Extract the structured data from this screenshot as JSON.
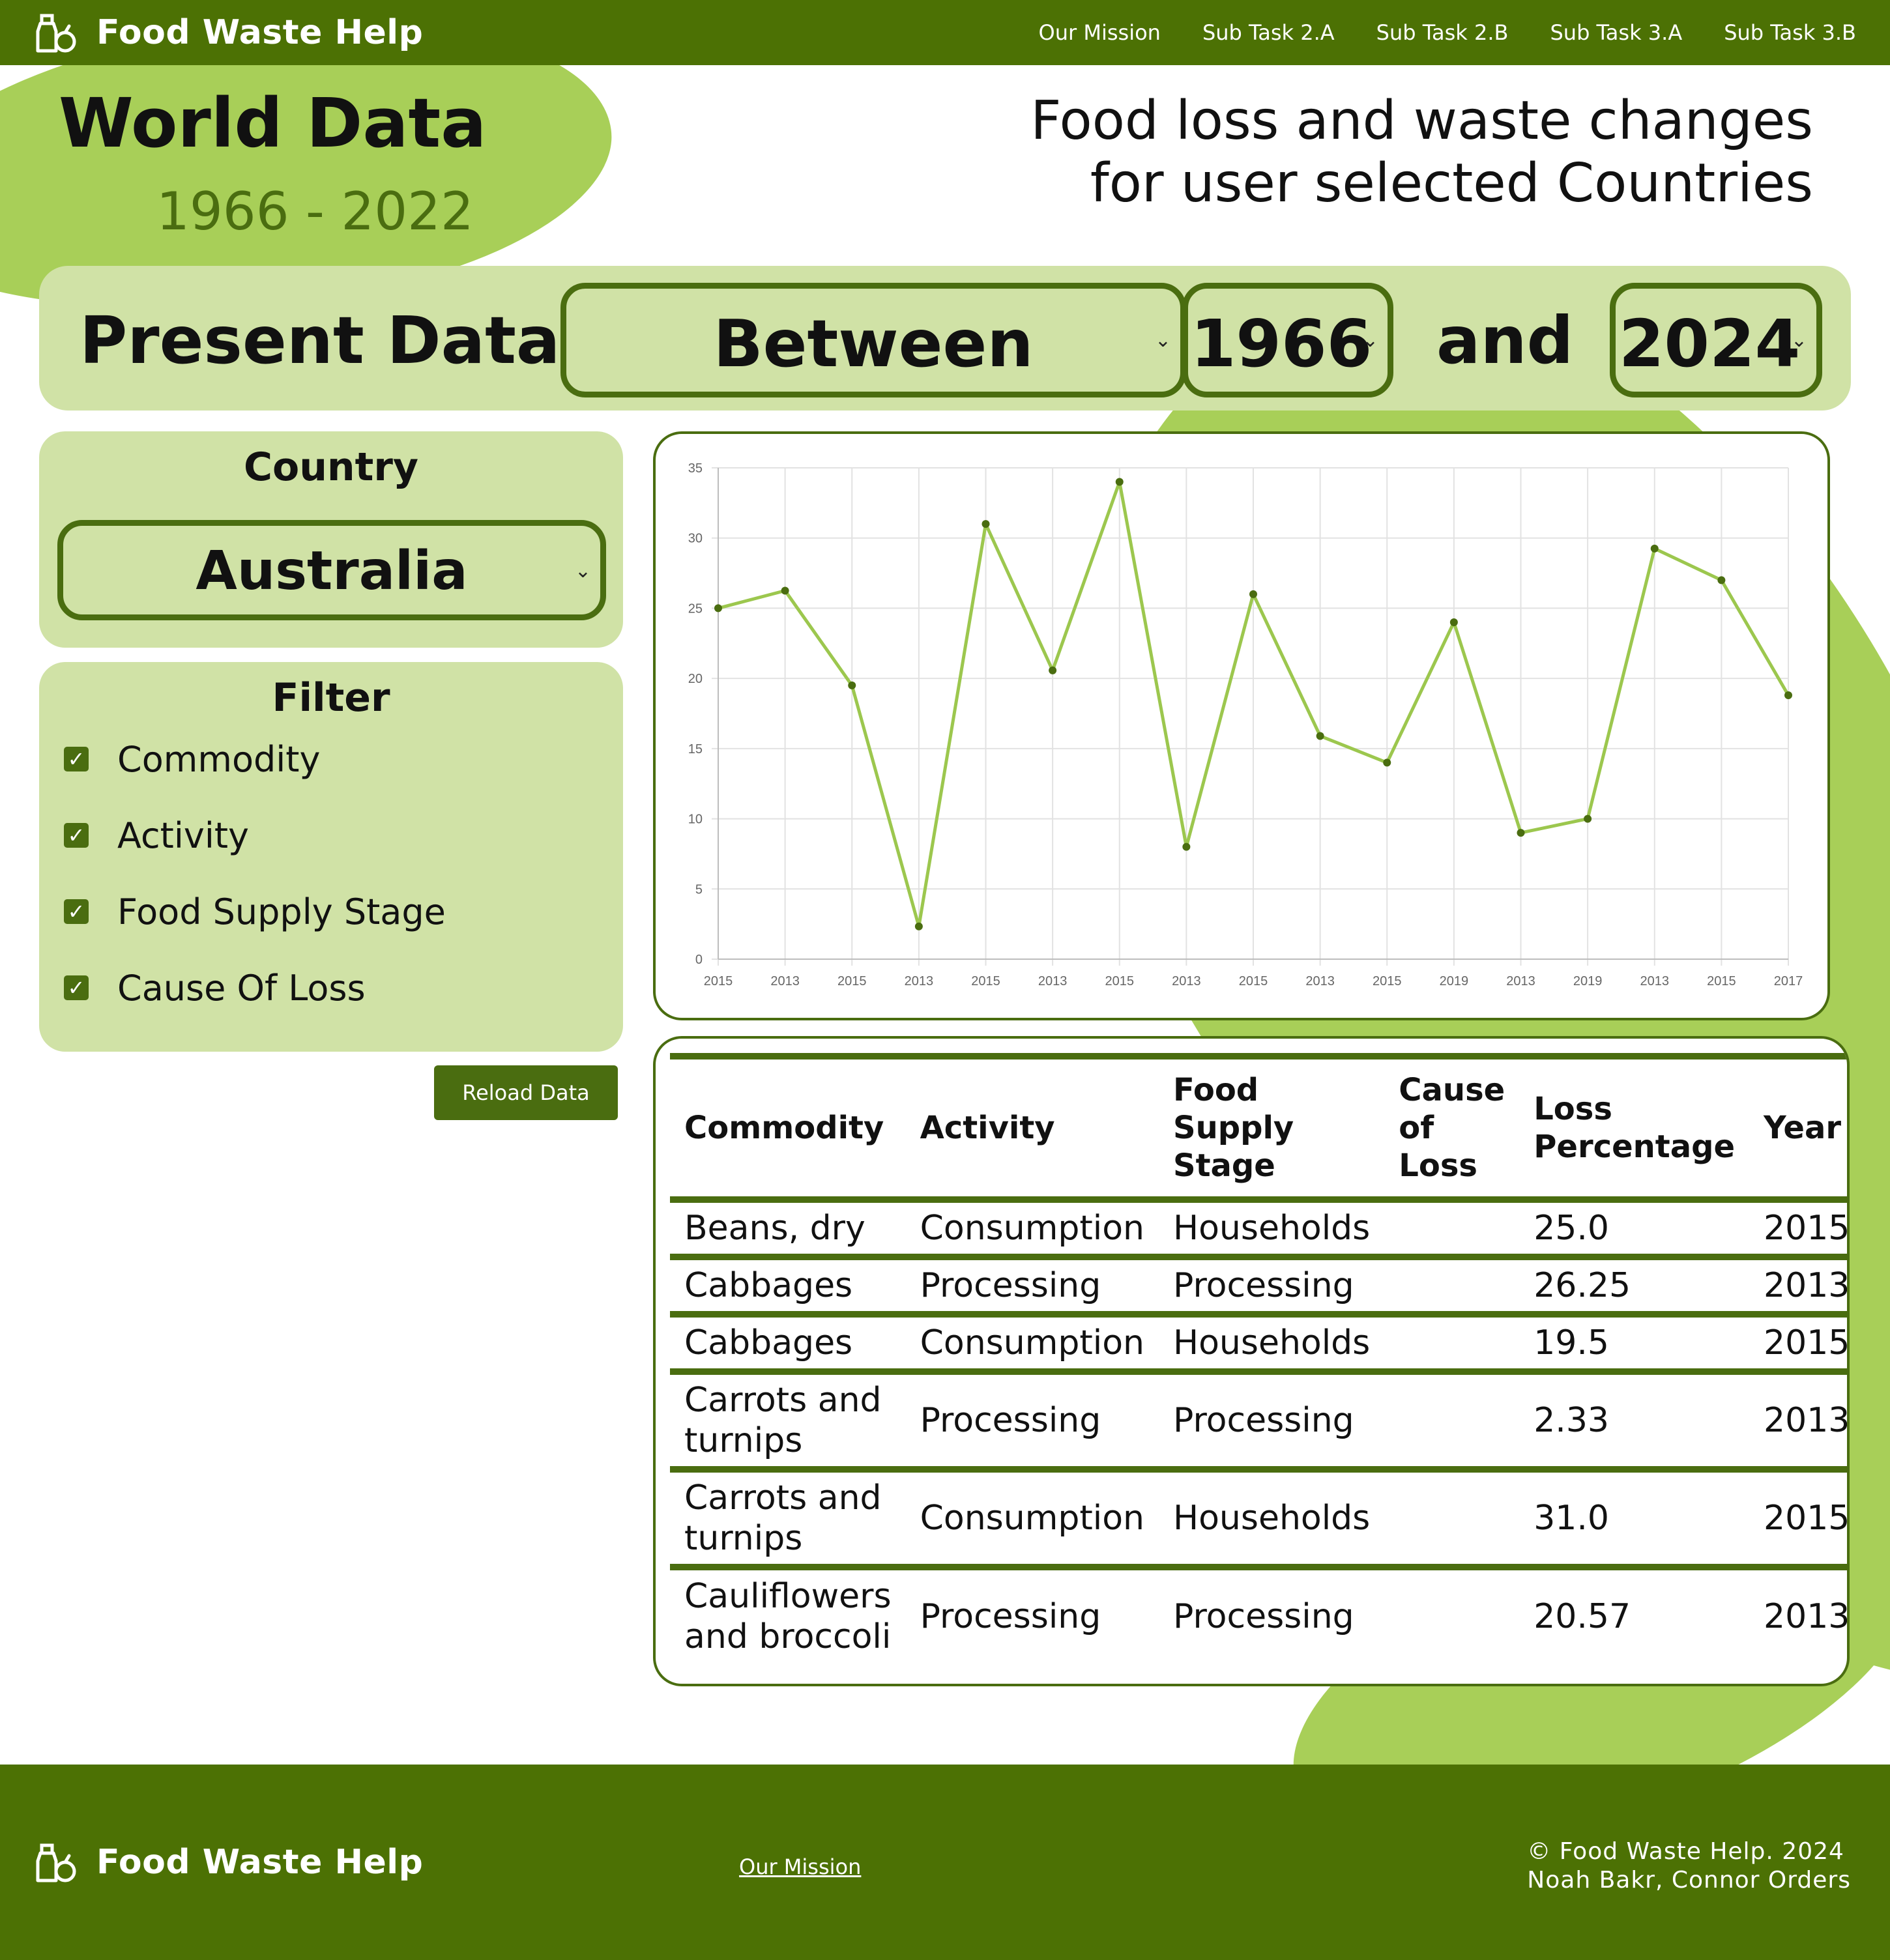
{
  "brand": {
    "name": "Food Waste Help",
    "icon": "food-bag-icon"
  },
  "nav": {
    "links": [
      "Our Mission",
      "Sub Task 2.A",
      "Sub Task 2.B",
      "Sub Task 3.A",
      "Sub Task 3.B"
    ]
  },
  "hero": {
    "title": "World Data",
    "range": "1966 - 2022",
    "subtitle_line1": "Food loss and waste changes",
    "subtitle_line2": "for user selected Countries"
  },
  "present": {
    "label": "Present Data",
    "mode_value": "Between",
    "start_year": "1966",
    "and_label": "and",
    "end_year": "2024"
  },
  "country": {
    "title": "Country",
    "selected": "Australia"
  },
  "filter": {
    "title": "Filter",
    "options": [
      {
        "label": "Commodity",
        "checked": true
      },
      {
        "label": "Activity",
        "checked": true
      },
      {
        "label": "Food Supply Stage",
        "checked": true
      },
      {
        "label": "Cause Of Loss",
        "checked": true
      }
    ]
  },
  "reload_label": "Reload Data",
  "chart_data": {
    "type": "line",
    "categories": [
      "2015",
      "2013",
      "2015",
      "2013",
      "2015",
      "2013",
      "2015",
      "2013",
      "2015",
      "2013",
      "2015",
      "2019",
      "2013",
      "2019",
      "2013",
      "2015",
      "2017"
    ],
    "series": [
      {
        "values": [
          25.0,
          26.25,
          19.5,
          2.33,
          31.0,
          20.57,
          34.0,
          8.0,
          26.0,
          15.9,
          14.0,
          24.0,
          9.0,
          10.0,
          29.25,
          27.0,
          18.8
        ]
      }
    ],
    "ylim": [
      0,
      35
    ],
    "yticks": [
      0,
      5,
      10,
      15,
      20,
      25,
      30,
      35
    ],
    "grid": true,
    "line_color": "#9cc74e",
    "point_color": "#4a6d10"
  },
  "table": {
    "headers": [
      "Commodity",
      "Activity",
      "Food Supply Stage",
      "Cause of Loss",
      "Loss Percentage",
      "Year"
    ],
    "rows": [
      [
        "Beans, dry",
        "Consumption",
        "Households",
        "",
        "25.0",
        "2015"
      ],
      [
        "Cabbages",
        "Processing",
        "Processing",
        "",
        "26.25",
        "2013"
      ],
      [
        "Cabbages",
        "Consumption",
        "Households",
        "",
        "19.5",
        "2015"
      ],
      [
        "Carrots and turnips",
        "Processing",
        "Processing",
        "",
        "2.33",
        "2013"
      ],
      [
        "Carrots and turnips",
        "Consumption",
        "Households",
        "",
        "31.0",
        "2015"
      ],
      [
        "Cauliflowers and broccoli",
        "Processing",
        "Processing",
        "",
        "20.57",
        "2013"
      ]
    ]
  },
  "footer": {
    "link": "Our Mission",
    "copyright": "© Food Waste Help. 2024",
    "authors": "Noah Bakr, Connor Orders"
  },
  "colors": {
    "primary": "#4c7104",
    "panel": "#d0e2a6",
    "accent": "#a8cf58"
  }
}
